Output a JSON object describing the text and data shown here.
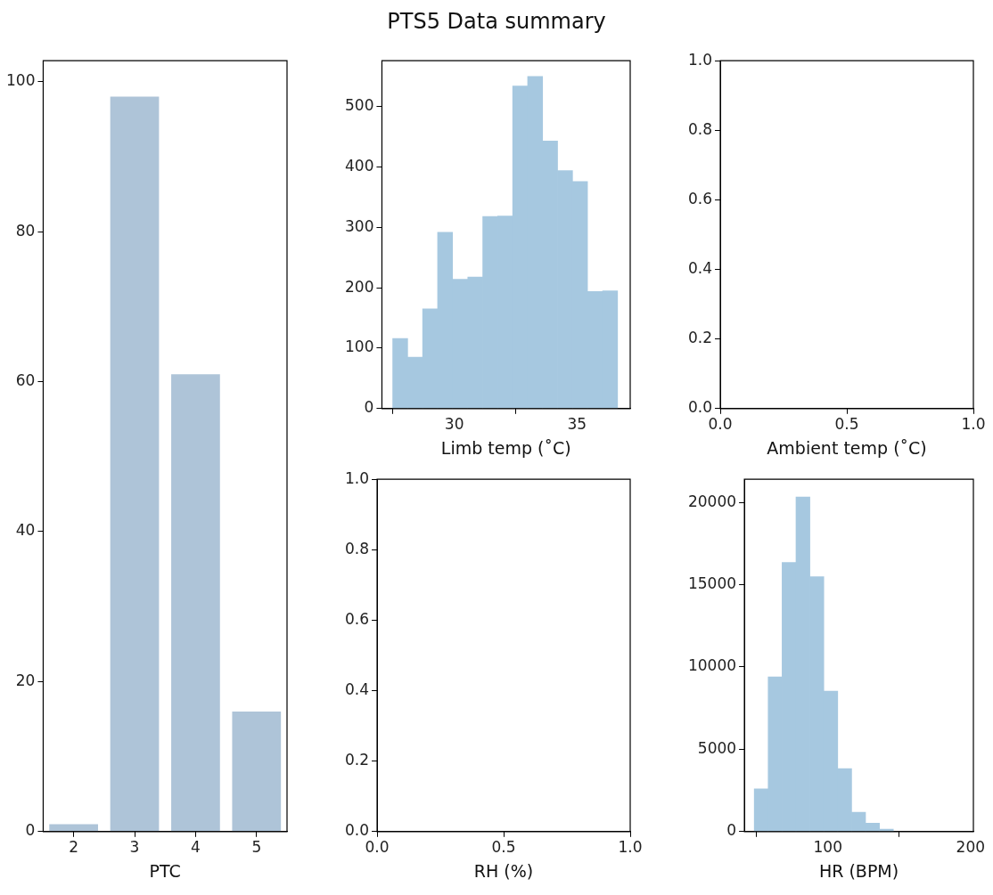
{
  "chart_data": [
    {
      "type": "bar",
      "xlabel": "PTC",
      "categories": [
        "2",
        "3",
        "4",
        "5"
      ],
      "values": [
        1,
        98,
        61,
        16
      ],
      "color": "#aec4d8",
      "ylim": [
        0,
        102.8
      ],
      "yticks": [
        0,
        20,
        40,
        60,
        80,
        100
      ]
    },
    {
      "type": "histogram",
      "title": "PTS5 Data summary",
      "xlabel": "Limb temp (˚C)",
      "bins": [
        27.49,
        28.1,
        28.71,
        29.32,
        29.93,
        30.55,
        31.16,
        31.77,
        32.38,
        32.99,
        33.6,
        34.21,
        34.82,
        35.43,
        36.04,
        36.66
      ],
      "values": [
        116,
        85,
        165,
        292,
        214,
        218,
        318,
        319,
        534,
        550,
        443,
        394,
        376,
        194,
        195
      ],
      "color": "#a6c8e0",
      "xlim": [
        27.05,
        37.17
      ],
      "xticks": [
        30,
        35
      ],
      "ylim": [
        0,
        576
      ],
      "yticks": [
        0,
        100,
        200,
        300,
        400,
        500
      ]
    },
    {
      "type": "scatter",
      "xlabel": "Ambient temp (˚C)",
      "xlim": [
        0,
        1
      ],
      "xticks": [
        {
          "value": 0,
          "label": "0.0"
        },
        {
          "value": 0.5,
          "label": "0.5"
        },
        {
          "value": 1,
          "label": "1.0"
        }
      ],
      "ylim": [
        0,
        1
      ],
      "yticks": [
        {
          "value": 0,
          "label": "0.0"
        },
        {
          "value": 0.2,
          "label": "0.2"
        },
        {
          "value": 0.4,
          "label": "0.4"
        },
        {
          "value": 0.6,
          "label": "0.6"
        },
        {
          "value": 0.8,
          "label": "0.8"
        },
        {
          "value": 1,
          "label": "1.0"
        }
      ]
    },
    {
      "type": "scatter",
      "xlabel": "RH (%)",
      "xlim": [
        0,
        1
      ],
      "xticks": [
        {
          "value": 0,
          "label": "0.0"
        },
        {
          "value": 0.5,
          "label": "0.5"
        },
        {
          "value": 1,
          "label": "1.0"
        }
      ],
      "ylim": [
        0,
        1
      ],
      "yticks": [
        {
          "value": 0,
          "label": "0.0"
        },
        {
          "value": 0.2,
          "label": "0.2"
        },
        {
          "value": 0.4,
          "label": "0.4"
        },
        {
          "value": 0.6,
          "label": "0.6"
        },
        {
          "value": 0.8,
          "label": "0.8"
        },
        {
          "value": 1,
          "label": "1.0"
        }
      ]
    },
    {
      "type": "histogram",
      "xlabel": "HR (BPM)",
      "bins": [
        48.4,
        58.2,
        67.9,
        77.7,
        87.4,
        97.2,
        106.9,
        116.7,
        126.4,
        136.2,
        145.9
      ],
      "values": [
        2600,
        9400,
        16350,
        20330,
        15480,
        8530,
        3830,
        1180,
        510,
        150
      ],
      "color": "#a6c8e0",
      "xlim": [
        41.5,
        202
      ],
      "xticks": [
        100,
        200
      ],
      "ylim": [
        0,
        21400
      ],
      "yticks": [
        0,
        5000,
        10000,
        15000,
        20000
      ]
    }
  ]
}
